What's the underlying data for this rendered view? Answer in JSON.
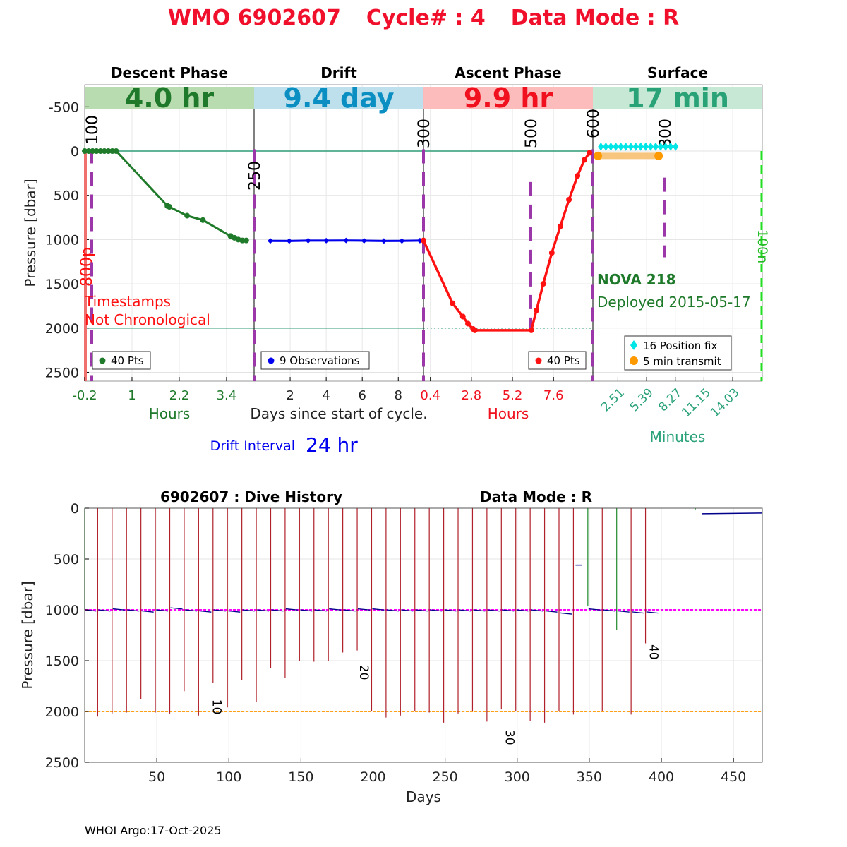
{
  "title": {
    "wmo": "WMO 6902607",
    "cycle": "Cycle# : 4",
    "mode": "Data Mode : R",
    "color": "#f0102c"
  },
  "colors": {
    "descent": "#1f7a2a",
    "drift": "#0000ee",
    "ascent": "#ff1111",
    "surface": "#22a07a",
    "position": "#00e5e5",
    "transmit": "#ff9900",
    "magenta": "#9b37a8",
    "history_drift": "#ff00ff",
    "history_park": "#ffa21a"
  },
  "chart_data": [
    {
      "type": "line",
      "name": "cycle-profile",
      "ylabel": "Pressure [dbar]",
      "ylim": [
        2600,
        -750
      ],
      "yticks": [
        -500,
        0,
        500,
        1000,
        1500,
        2000,
        2500
      ],
      "xlabel": "Days since start of cycle.",
      "phases": [
        {
          "key": "descent",
          "title": "Descent Phase",
          "duration": "4.0 hr",
          "band_color": "#b8dbb0",
          "text_color": "#1e7a2a",
          "unit": "Hours",
          "ticks": [
            "-0.2",
            "1",
            "2.2",
            "3.4"
          ],
          "tick_vals": [
            -0.2,
            1,
            2.2,
            3.4
          ],
          "xlim": [
            -0.2,
            4.1
          ],
          "legend": "40 Pts",
          "series": [
            [
              -0.2,
              0
            ],
            [
              -0.1,
              0
            ],
            [
              0.0,
              0
            ],
            [
              0.1,
              0
            ],
            [
              0.2,
              0
            ],
            [
              0.3,
              0
            ],
            [
              0.4,
              0
            ],
            [
              0.5,
              0
            ],
            [
              0.6,
              0
            ],
            [
              1.9,
              620
            ],
            [
              1.95,
              630
            ],
            [
              2.4,
              730
            ],
            [
              2.8,
              780
            ],
            [
              3.5,
              960
            ],
            [
              3.6,
              980
            ],
            [
              3.7,
              1000
            ],
            [
              3.8,
              1010
            ],
            [
              3.9,
              1010
            ]
          ]
        },
        {
          "key": "drift",
          "title": "Drift",
          "duration": "9.4 day",
          "band_color": "#bde0ec",
          "text_color": "#0b8fc2",
          "ticks": [
            "2",
            "4",
            "6",
            "8"
          ],
          "tick_vals": [
            2,
            4,
            6,
            8
          ],
          "xlim": [
            0,
            9.4
          ],
          "legend": "9 Observations",
          "series": [
            [
              0.9,
              1015
            ],
            [
              1.95,
              1016
            ],
            [
              3.0,
              1012
            ],
            [
              4.0,
              1012
            ],
            [
              5.1,
              1010
            ],
            [
              6.1,
              1013
            ],
            [
              7.2,
              1016
            ],
            [
              8.2,
              1015
            ],
            [
              9.2,
              1012
            ]
          ]
        },
        {
          "key": "ascent",
          "title": "Ascent Phase",
          "duration": "9.9 hr",
          "band_color": "#fcbcbc",
          "text_color": "#f0101e",
          "unit": "Hours",
          "ticks": [
            "0.4",
            "2.8",
            "5.2",
            "7.6"
          ],
          "tick_vals": [
            0.4,
            2.8,
            5.2,
            7.6
          ],
          "xlim": [
            0,
            9.9
          ],
          "legend": "40 Pts",
          "series": [
            [
              0,
              1010
            ],
            [
              1.7,
              1720
            ],
            [
              2.3,
              1870
            ],
            [
              2.6,
              1950
            ],
            [
              2.9,
              2010
            ],
            [
              3.0,
              2025
            ],
            [
              6.3,
              2025
            ],
            [
              6.6,
              1800
            ],
            [
              7.0,
              1500
            ],
            [
              7.5,
              1150
            ],
            [
              8.0,
              850
            ],
            [
              8.5,
              550
            ],
            [
              9.0,
              280
            ],
            [
              9.4,
              100
            ],
            [
              9.7,
              20
            ]
          ]
        },
        {
          "key": "surface",
          "title": "Surface",
          "duration": "17 min",
          "band_color": "#c6e8d4",
          "text_color": "#2aa278",
          "unit": "Minutes",
          "ticks": [
            "2.51",
            "5.39",
            "8.27",
            "11.15",
            "14.03"
          ],
          "tick_vals": [
            2.51,
            5.39,
            8.27,
            11.15,
            14.03
          ],
          "xlim": [
            0,
            17
          ],
          "legend_position": "16 Position fix",
          "legend_transmit": "5 min transmit",
          "position_fixes": [
            0.8,
            1.3,
            1.8,
            2.3,
            2.8,
            3.3,
            3.8,
            4.3,
            4.8,
            5.3,
            5.8,
            6.3,
            6.8,
            7.3,
            7.8,
            8.3
          ],
          "transmit": [
            [
              0.5,
              6.6
            ]
          ]
        }
      ],
      "park_depth": 2000,
      "markers": [
        "100",
        "250",
        "300",
        "500",
        "600",
        "800"
      ],
      "side_labels": {
        "left_vertical": "800p",
        "right_vertical": "100n"
      },
      "annotations": {
        "timestamps_1": "Timestamps",
        "timestamps_2": "Not Chronological",
        "float_name": "NOVA 218",
        "deployed": "Deployed 2015-05-17",
        "drift_interval_label": "Drift Interval",
        "drift_interval_value": "24 hr"
      }
    },
    {
      "type": "line",
      "name": "dive-history",
      "title": "6902607 : Dive History",
      "mode": "Data Mode : R",
      "xlabel": "Days",
      "ylabel": "Pressure [dbar]",
      "xlim": [
        0,
        470
      ],
      "ylim": [
        2500,
        0
      ],
      "xticks": [
        50,
        100,
        150,
        200,
        250,
        300,
        350,
        400,
        450
      ],
      "yticks": [
        0,
        500,
        1000,
        1500,
        2000,
        2500
      ],
      "drift_ref": 1000,
      "park_ref": 2000,
      "cycle_labels": [
        {
          "cycle": "10",
          "day": 88,
          "pressure": 1880
        },
        {
          "cycle": "20",
          "day": 190,
          "pressure": 1540
        },
        {
          "cycle": "30",
          "day": 291,
          "pressure": 2180
        },
        {
          "cycle": "40",
          "day": 391,
          "pressure": 1340
        }
      ],
      "profiles": [
        {
          "day": 0,
          "max": 1000,
          "drift": 1000,
          "desc": true
        },
        {
          "day": 9,
          "max": 2050,
          "drift": 1000
        },
        {
          "day": 19,
          "max": 2020,
          "drift": 990
        },
        {
          "day": 29,
          "max": 2010,
          "drift": 1000
        },
        {
          "day": 39,
          "max": 1880,
          "drift": 1010
        },
        {
          "day": 49,
          "max": 2010,
          "drift": 1000
        },
        {
          "day": 59,
          "max": 2020,
          "drift": 980
        },
        {
          "day": 69,
          "max": 1800,
          "drift": 1000
        },
        {
          "day": 79,
          "max": 2040,
          "drift": 1010
        },
        {
          "day": 89,
          "max": 1720,
          "drift": 1000
        },
        {
          "day": 99,
          "max": 1960,
          "drift": 1010
        },
        {
          "day": 109,
          "max": 1690,
          "drift": 1000
        },
        {
          "day": 119,
          "max": 1910,
          "drift": 1000
        },
        {
          "day": 129,
          "max": 1570,
          "drift": 1000
        },
        {
          "day": 139,
          "max": 1670,
          "drift": 990
        },
        {
          "day": 149,
          "max": 1500,
          "drift": 1000
        },
        {
          "day": 159,
          "max": 1510,
          "drift": 1000
        },
        {
          "day": 169,
          "max": 1500,
          "drift": 990
        },
        {
          "day": 179,
          "max": 1420,
          "drift": 1000
        },
        {
          "day": 189,
          "max": 1400,
          "drift": 990
        },
        {
          "day": 199,
          "max": 2000,
          "drift": 990
        },
        {
          "day": 209,
          "max": 2060,
          "drift": 1000
        },
        {
          "day": 219,
          "max": 2040,
          "drift": 1000
        },
        {
          "day": 229,
          "max": 2000,
          "drift": 1000
        },
        {
          "day": 239,
          "max": 2010,
          "drift": 1000
        },
        {
          "day": 249,
          "max": 2110,
          "drift": 1000
        },
        {
          "day": 259,
          "max": 2020,
          "drift": 1000
        },
        {
          "day": 269,
          "max": 2000,
          "drift": 1000
        },
        {
          "day": 279,
          "max": 2100,
          "drift": 1000
        },
        {
          "day": 289,
          "max": 1980,
          "drift": 1000
        },
        {
          "day": 299,
          "max": 2000,
          "drift": 1000
        },
        {
          "day": 309,
          "max": 2090,
          "drift": 1000
        },
        {
          "day": 319,
          "max": 2110,
          "drift": 1010
        },
        {
          "day": 329,
          "max": 2000,
          "drift": 1030
        },
        {
          "day": 339,
          "max": 2030,
          "drift": 560,
          "partial": true
        },
        {
          "day": 349,
          "max": 960,
          "drift": 990,
          "desc": true
        },
        {
          "day": 359,
          "max": 2000,
          "drift": 1000
        },
        {
          "day": 369,
          "max": 1200,
          "drift": 1010,
          "desc": true
        },
        {
          "day": 379,
          "max": 2030,
          "drift": 1020
        },
        {
          "day": 389,
          "max": 1330,
          "drift": 1020
        },
        {
          "day": 426,
          "max": 50,
          "drift": 50,
          "desc": true
        }
      ]
    }
  ],
  "footer": "WHOI Argo:17-Oct-2025"
}
